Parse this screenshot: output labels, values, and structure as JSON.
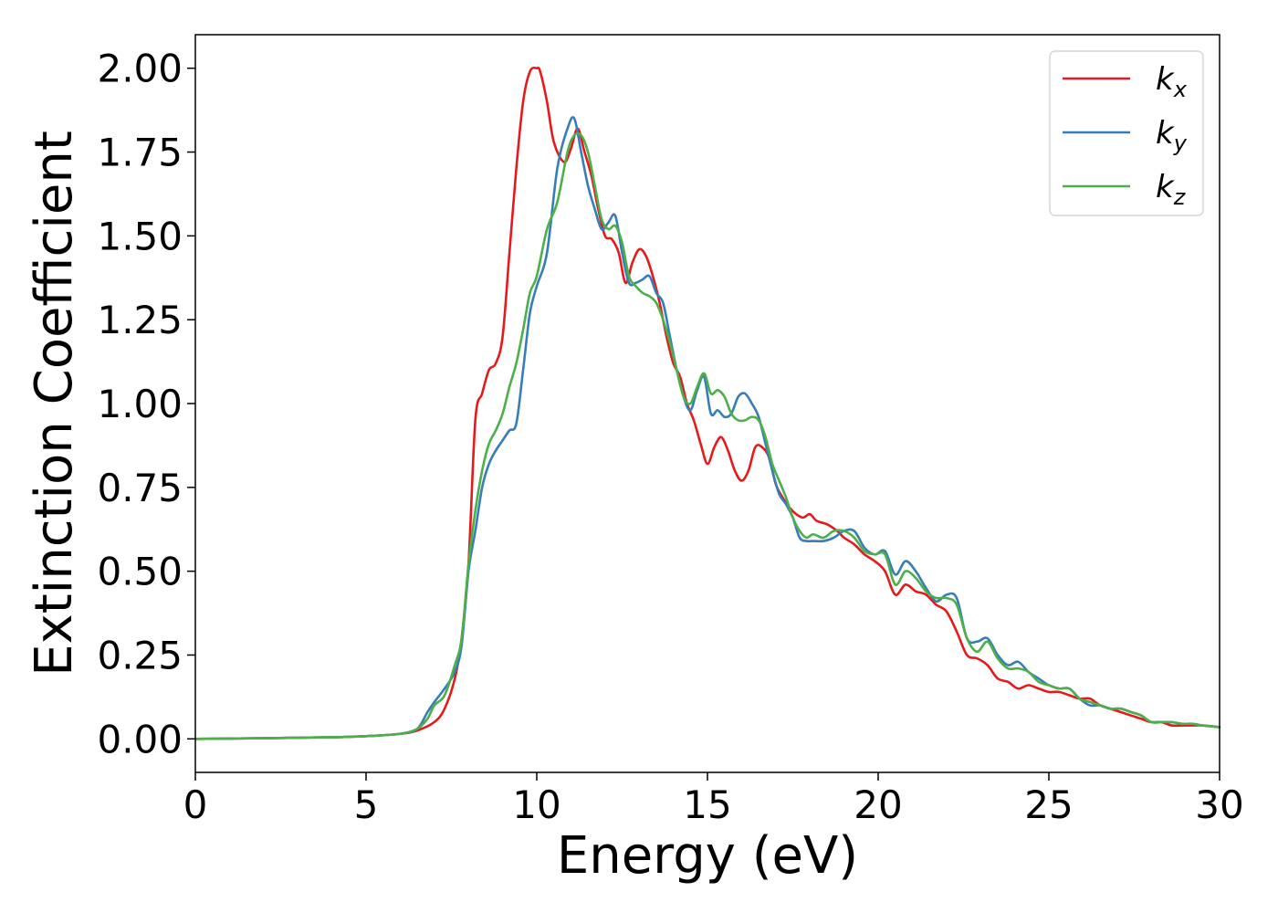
{
  "chart_data": {
    "type": "line",
    "title": "",
    "xlabel": "Energy (eV)",
    "ylabel": "Extinction Coefficient",
    "xlim": [
      0,
      30
    ],
    "ylim": [
      -0.1,
      2.1
    ],
    "xticks": [
      0,
      5,
      10,
      15,
      20,
      25,
      30
    ],
    "xtick_labels": [
      "0",
      "5",
      "10",
      "15",
      "20",
      "25",
      "30"
    ],
    "yticks": [
      0,
      0.25,
      0.5,
      0.75,
      1.0,
      1.25,
      1.5,
      1.75,
      2.0
    ],
    "ytick_labels": [
      "0.00",
      "0.25",
      "0.50",
      "0.75",
      "1.00",
      "1.25",
      "1.50",
      "1.75",
      "2.00"
    ],
    "grid": false,
    "legend_position": "top-right",
    "series": [
      {
        "name": "k",
        "subscript": "x",
        "color": "#e41a1c",
        "x": [
          0,
          2,
          4,
          5,
          6,
          6.5,
          7,
          7.3,
          7.6,
          7.8,
          8.0,
          8.2,
          8.4,
          8.6,
          8.8,
          9.0,
          9.2,
          9.4,
          9.6,
          9.8,
          10.0,
          10.1,
          10.3,
          10.5,
          10.8,
          11.0,
          11.2,
          11.4,
          11.6,
          11.8,
          12.0,
          12.2,
          12.4,
          12.6,
          12.8,
          13.0,
          13.2,
          13.4,
          13.6,
          13.8,
          14.0,
          14.2,
          14.4,
          14.6,
          14.8,
          15.0,
          15.2,
          15.4,
          15.6,
          15.8,
          16.0,
          16.2,
          16.4,
          16.6,
          16.8,
          17.0,
          17.2,
          17.4,
          17.6,
          17.8,
          18.0,
          18.2,
          18.5,
          18.8,
          19.0,
          19.3,
          19.6,
          19.9,
          20.2,
          20.5,
          20.8,
          21.1,
          21.4,
          21.7,
          22.0,
          22.3,
          22.6,
          22.9,
          23.2,
          23.5,
          23.8,
          24.1,
          24.4,
          24.7,
          25.0,
          25.3,
          25.6,
          25.9,
          26.2,
          26.5,
          26.8,
          27.1,
          27.4,
          27.7,
          28.0,
          28.3,
          28.6,
          28.9,
          29.2,
          29.5,
          30.0
        ],
        "y": [
          0.0,
          0.002,
          0.005,
          0.008,
          0.015,
          0.025,
          0.05,
          0.09,
          0.18,
          0.3,
          0.52,
          0.95,
          1.03,
          1.1,
          1.12,
          1.2,
          1.45,
          1.7,
          1.9,
          1.99,
          2.0,
          1.99,
          1.9,
          1.78,
          1.72,
          1.76,
          1.82,
          1.75,
          1.68,
          1.58,
          1.5,
          1.49,
          1.45,
          1.36,
          1.42,
          1.46,
          1.44,
          1.38,
          1.3,
          1.2,
          1.12,
          1.08,
          1.0,
          0.95,
          0.88,
          0.82,
          0.87,
          0.9,
          0.86,
          0.8,
          0.77,
          0.8,
          0.87,
          0.87,
          0.84,
          0.76,
          0.72,
          0.69,
          0.67,
          0.66,
          0.67,
          0.65,
          0.64,
          0.62,
          0.6,
          0.58,
          0.55,
          0.53,
          0.5,
          0.43,
          0.46,
          0.44,
          0.43,
          0.4,
          0.38,
          0.32,
          0.25,
          0.24,
          0.22,
          0.18,
          0.17,
          0.15,
          0.16,
          0.15,
          0.14,
          0.14,
          0.13,
          0.12,
          0.12,
          0.1,
          0.09,
          0.08,
          0.07,
          0.06,
          0.05,
          0.05,
          0.04,
          0.04,
          0.04,
          0.04,
          0.035
        ]
      },
      {
        "name": "k",
        "subscript": "y",
        "color": "#377eb8",
        "x": [
          0,
          2,
          4,
          5,
          6,
          6.5,
          6.8,
          7.0,
          7.3,
          7.6,
          7.8,
          8.0,
          8.2,
          8.4,
          8.6,
          8.8,
          9.0,
          9.2,
          9.4,
          9.6,
          9.8,
          10.0,
          10.3,
          10.6,
          10.9,
          11.1,
          11.3,
          11.5,
          11.7,
          11.9,
          12.1,
          12.3,
          12.5,
          12.7,
          12.9,
          13.1,
          13.3,
          13.5,
          13.7,
          13.9,
          14.1,
          14.3,
          14.5,
          14.7,
          14.9,
          15.1,
          15.3,
          15.5,
          15.7,
          15.9,
          16.1,
          16.3,
          16.5,
          16.7,
          16.9,
          17.1,
          17.3,
          17.5,
          17.7,
          17.9,
          18.1,
          18.4,
          18.7,
          19.0,
          19.3,
          19.6,
          19.9,
          20.2,
          20.5,
          20.8,
          21.1,
          21.4,
          21.7,
          22.0,
          22.3,
          22.6,
          22.9,
          23.2,
          23.5,
          23.8,
          24.1,
          24.4,
          24.7,
          25.0,
          25.3,
          25.6,
          25.9,
          26.2,
          26.5,
          26.8,
          27.1,
          27.4,
          27.7,
          28.0,
          28.3,
          28.6,
          28.9,
          29.2,
          29.5,
          30.0
        ],
        "y": [
          0.0,
          0.002,
          0.005,
          0.008,
          0.015,
          0.03,
          0.08,
          0.11,
          0.15,
          0.2,
          0.28,
          0.5,
          0.62,
          0.75,
          0.82,
          0.86,
          0.89,
          0.92,
          0.94,
          1.1,
          1.27,
          1.35,
          1.45,
          1.7,
          1.82,
          1.85,
          1.75,
          1.65,
          1.58,
          1.52,
          1.54,
          1.56,
          1.45,
          1.36,
          1.36,
          1.37,
          1.38,
          1.33,
          1.3,
          1.2,
          1.1,
          1.02,
          0.98,
          1.04,
          1.08,
          0.97,
          0.98,
          0.96,
          0.97,
          1.02,
          1.03,
          1.0,
          0.96,
          0.88,
          0.8,
          0.73,
          0.7,
          0.66,
          0.6,
          0.59,
          0.59,
          0.59,
          0.6,
          0.62,
          0.62,
          0.57,
          0.55,
          0.56,
          0.49,
          0.53,
          0.5,
          0.45,
          0.41,
          0.43,
          0.42,
          0.3,
          0.29,
          0.3,
          0.25,
          0.22,
          0.23,
          0.2,
          0.18,
          0.16,
          0.15,
          0.15,
          0.12,
          0.1,
          0.1,
          0.09,
          0.09,
          0.08,
          0.07,
          0.05,
          0.05,
          0.05,
          0.045,
          0.045,
          0.04,
          0.035
        ]
      },
      {
        "name": "k",
        "subscript": "z",
        "color": "#4daf4a",
        "x": [
          0,
          2,
          4,
          5,
          6,
          6.5,
          6.8,
          7.0,
          7.3,
          7.6,
          7.8,
          8.0,
          8.2,
          8.4,
          8.6,
          8.8,
          9.0,
          9.2,
          9.4,
          9.6,
          9.8,
          10.0,
          10.3,
          10.6,
          10.9,
          11.1,
          11.3,
          11.5,
          11.7,
          11.9,
          12.1,
          12.3,
          12.5,
          12.7,
          12.9,
          13.1,
          13.3,
          13.5,
          13.7,
          13.9,
          14.1,
          14.3,
          14.5,
          14.7,
          14.9,
          15.1,
          15.3,
          15.5,
          15.7,
          15.9,
          16.1,
          16.3,
          16.5,
          16.7,
          16.9,
          17.1,
          17.3,
          17.5,
          17.7,
          17.9,
          18.1,
          18.4,
          18.7,
          19.0,
          19.3,
          19.6,
          19.9,
          20.2,
          20.5,
          20.8,
          21.1,
          21.4,
          21.7,
          22.0,
          22.3,
          22.6,
          22.9,
          23.2,
          23.5,
          23.8,
          24.1,
          24.4,
          24.7,
          25.0,
          25.3,
          25.6,
          25.9,
          26.2,
          26.5,
          26.8,
          27.1,
          27.4,
          27.7,
          28.0,
          28.3,
          28.6,
          28.9,
          29.2,
          29.5,
          30.0
        ],
        "y": [
          0.0,
          0.002,
          0.005,
          0.008,
          0.015,
          0.03,
          0.06,
          0.1,
          0.13,
          0.22,
          0.3,
          0.52,
          0.68,
          0.8,
          0.88,
          0.92,
          0.97,
          1.05,
          1.12,
          1.22,
          1.33,
          1.38,
          1.52,
          1.6,
          1.75,
          1.8,
          1.8,
          1.75,
          1.65,
          1.55,
          1.52,
          1.53,
          1.48,
          1.38,
          1.35,
          1.33,
          1.32,
          1.3,
          1.25,
          1.18,
          1.1,
          1.02,
          1.0,
          1.05,
          1.09,
          1.03,
          1.04,
          1.02,
          0.97,
          0.95,
          0.95,
          0.96,
          0.95,
          0.9,
          0.82,
          0.77,
          0.72,
          0.66,
          0.62,
          0.6,
          0.61,
          0.6,
          0.62,
          0.62,
          0.6,
          0.56,
          0.55,
          0.55,
          0.46,
          0.5,
          0.48,
          0.44,
          0.42,
          0.42,
          0.4,
          0.3,
          0.26,
          0.29,
          0.24,
          0.21,
          0.21,
          0.2,
          0.17,
          0.16,
          0.15,
          0.15,
          0.12,
          0.11,
          0.1,
          0.09,
          0.09,
          0.08,
          0.07,
          0.05,
          0.05,
          0.05,
          0.045,
          0.045,
          0.04,
          0.035
        ]
      }
    ]
  }
}
